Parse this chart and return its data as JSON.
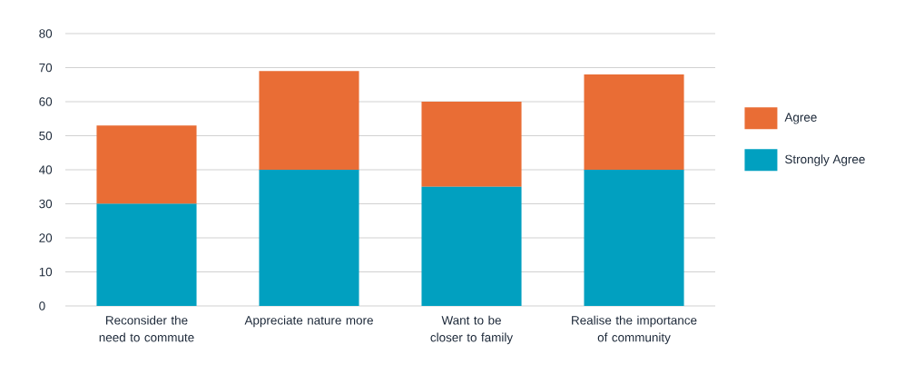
{
  "chart_data": {
    "type": "bar",
    "stacked": true,
    "categories": [
      "Reconsider the need to commute",
      "Appreciate nature more",
      "Want to be closer to family",
      "Realise the importance of community"
    ],
    "series": [
      {
        "name": "Strongly Agree",
        "color": "#01a0c0",
        "values": [
          30,
          40,
          35,
          40
        ]
      },
      {
        "name": "Agree",
        "color": "#e96d35",
        "values": [
          23,
          29,
          25,
          28
        ]
      }
    ],
    "ylim": [
      0,
      80
    ],
    "yticks": [
      0,
      10,
      20,
      30,
      40,
      50,
      60,
      70,
      80
    ],
    "grid": "y",
    "legend": "right"
  }
}
